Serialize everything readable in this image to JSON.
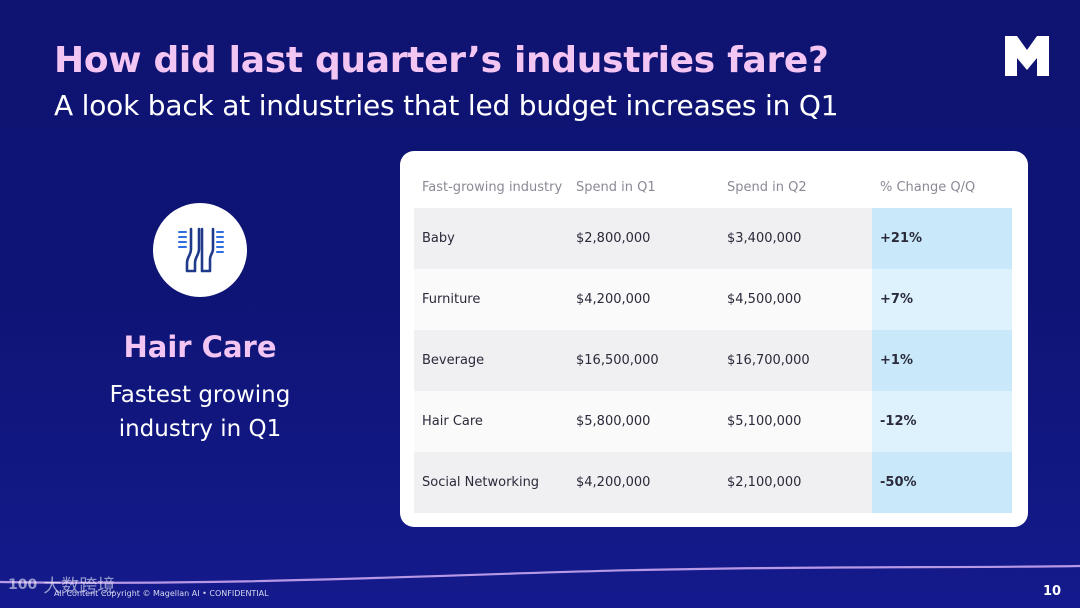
{
  "slide": {
    "title": "How did last quarter’s industries fare?",
    "subtitle": "A look back at industries that led budget increases in Q1",
    "logo_icon": "m-logo-icon",
    "page_number": "10",
    "footer_text": "All Content Copyright © Magellan AI • CONFIDENTIAL",
    "watermark_text": "大数跨境",
    "watermark_mark": "100"
  },
  "feature": {
    "icon": "comb-icon",
    "title": "Hair Care",
    "desc_line1": "Fastest growing",
    "desc_line2": "industry in Q1"
  },
  "table": {
    "headers": [
      "Fast-growing industry",
      "Spend in Q1",
      "Spend in Q2",
      "% Change Q/Q"
    ],
    "rows": [
      [
        "Baby",
        "$2,800,000",
        "$3,400,000",
        "+21%"
      ],
      [
        "Furniture",
        "$4,200,000",
        "$4,500,000",
        "+7%"
      ],
      [
        "Beverage",
        "$16,500,000",
        "$16,700,000",
        "+1%"
      ],
      [
        "Hair Care",
        "$5,800,000",
        "$5,100,000",
        "-12%"
      ],
      [
        "Social Networking",
        "$4,200,000",
        "$2,100,000",
        "-50%"
      ]
    ]
  },
  "colors": {
    "background": "#0f1372",
    "title_pink": "#f3c5f2",
    "highlight_blue": "#c9e9fb",
    "icon_blue": "#1f3a8a"
  }
}
